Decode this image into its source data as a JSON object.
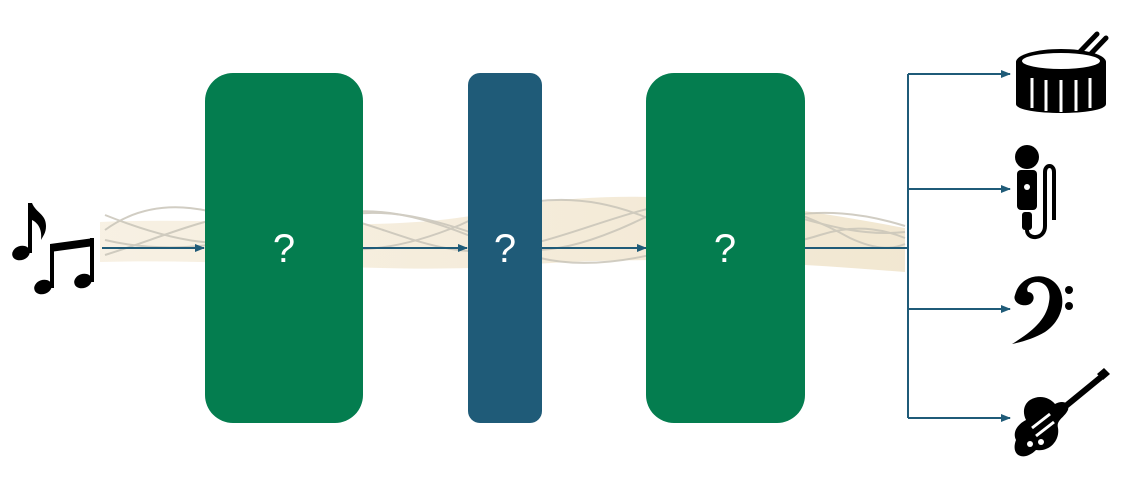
{
  "diagram": {
    "input": {
      "icon": "music-notes-icon"
    },
    "blocks": [
      {
        "id": "block-1",
        "label": "?",
        "color": "#047d4f"
      },
      {
        "id": "block-2",
        "label": "?",
        "color": "#1f5b78"
      },
      {
        "id": "block-3",
        "label": "?",
        "color": "#047d4f"
      }
    ],
    "outputs": [
      {
        "icon": "drum-icon"
      },
      {
        "icon": "microphone-icon"
      },
      {
        "icon": "bass-clef-icon"
      },
      {
        "icon": "electric-guitar-icon"
      }
    ],
    "colors": {
      "arrow": "#1f5b78",
      "wave_band": "#f3ead8",
      "wave_lines": "#c8c4b8",
      "icon": "#000000"
    }
  }
}
